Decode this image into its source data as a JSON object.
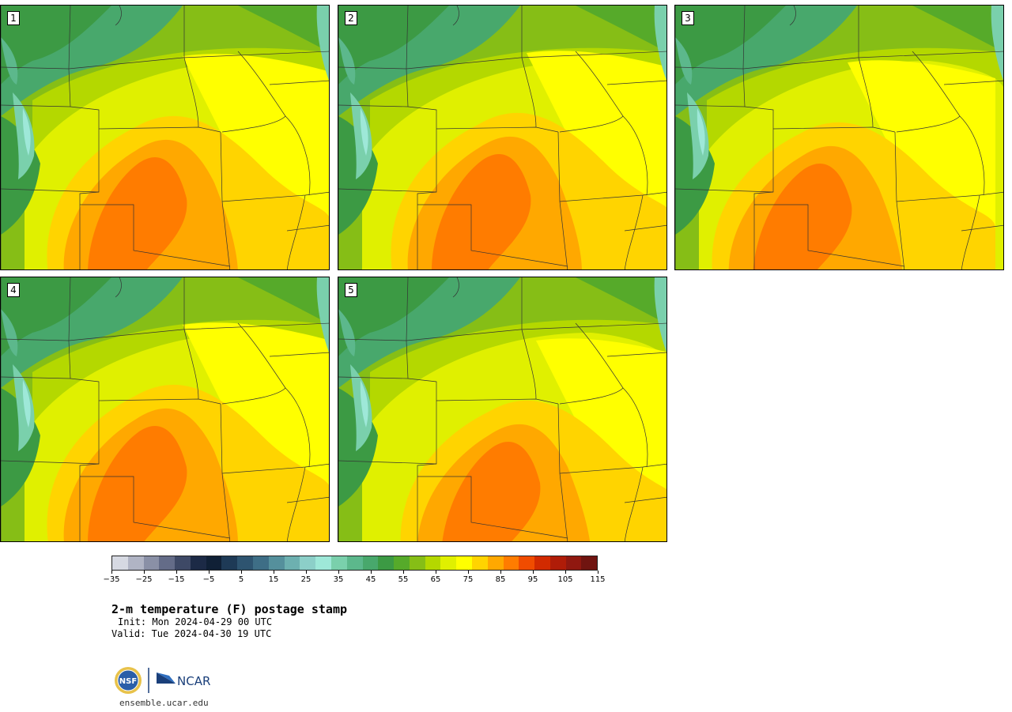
{
  "panels": [
    {
      "label": "1"
    },
    {
      "label": "2"
    },
    {
      "label": "3"
    },
    {
      "label": "4"
    },
    {
      "label": "5"
    }
  ],
  "colorbar": {
    "colors": [
      "#d6d9e2",
      "#b0b4c4",
      "#8a90a6",
      "#646c88",
      "#3e4966",
      "#1c2a46",
      "#102036",
      "#1e3a56",
      "#2e5470",
      "#3e6e86",
      "#55909c",
      "#6db0b0",
      "#8ccfc8",
      "#9ee8d8",
      "#7ad0ac",
      "#5cb88c",
      "#48a86c",
      "#3c9a44",
      "#56aa2a",
      "#86be16",
      "#b4d800",
      "#e0f000",
      "#ffff00",
      "#ffd400",
      "#ffa800",
      "#ff7c00",
      "#f04c00",
      "#d22a00",
      "#b01c08",
      "#901810",
      "#701410"
    ],
    "tick_labels": [
      "−35",
      "−25",
      "−15",
      "−5",
      "5",
      "15",
      "25",
      "35",
      "45",
      "55",
      "65",
      "75",
      "85",
      "95",
      "105",
      "115"
    ]
  },
  "title": "2-m temperature (F) postage stamp",
  "init": "Init: Mon 2024-04-29 00 UTC",
  "valid": "Valid: Tue 2024-04-30 19 UTC",
  "logos": {
    "nsf": "NSF",
    "ncar": "NCAR"
  },
  "site": "ensemble.ucar.edu"
}
